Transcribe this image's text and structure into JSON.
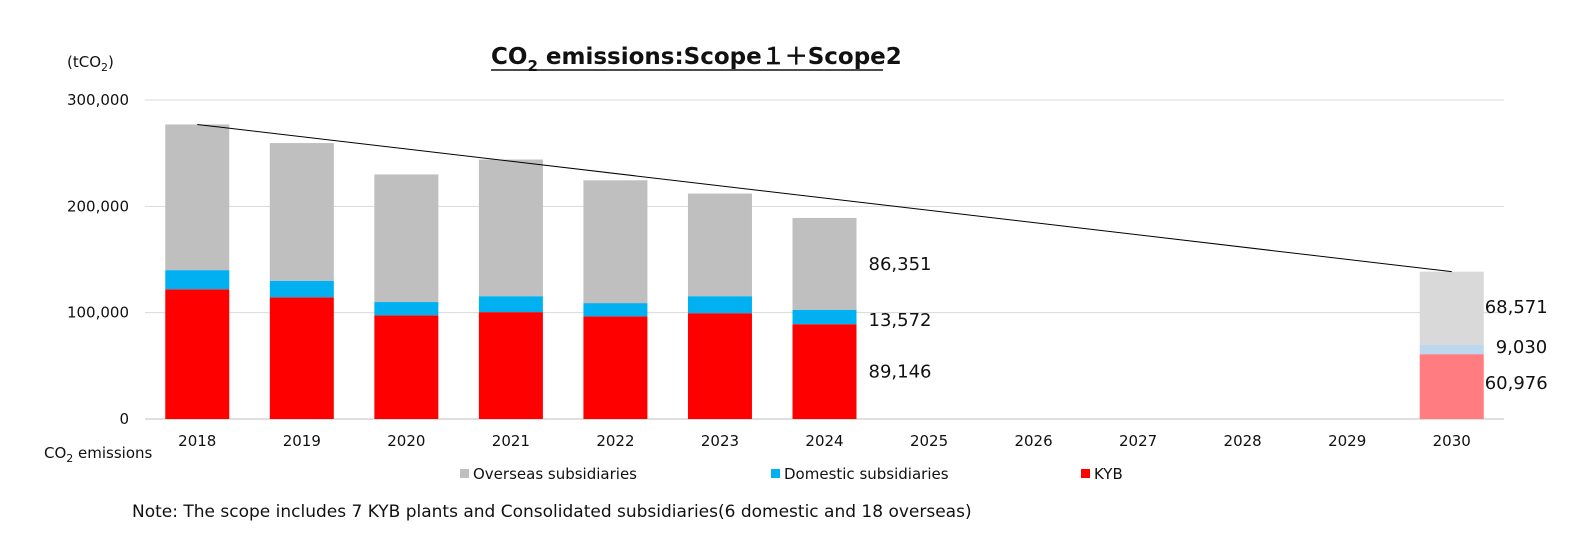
{
  "chart_data": {
    "type": "bar",
    "stacked": true,
    "title": "CO2 emissions:Scope１＋Scope2",
    "title_parts": {
      "main": "CO",
      "sub": "2",
      "rest": " emissions:Scope１＋Scope2"
    },
    "unit_label": {
      "main": "(tCO",
      "sub": "2",
      "close": ")"
    },
    "row_label": {
      "main": "CO",
      "sub": "2",
      "rest": " emissions"
    },
    "categories": [
      "2018",
      "2019",
      "2020",
      "2021",
      "2022",
      "2023",
      "2024",
      "2025",
      "2026",
      "2027",
      "2028",
      "2029",
      "2030"
    ],
    "series": [
      {
        "name": "KYB",
        "color": "#ff0000",
        "target_color": "#ff7c80",
        "values": [
          122000,
          114500,
          97500,
          100500,
          96500,
          99500,
          89146,
          null,
          null,
          null,
          null,
          null,
          60976
        ]
      },
      {
        "name": "Domestic subsidiaries",
        "color": "#00b0f0",
        "target_color": "#bdd7ee",
        "values": [
          18000,
          15500,
          12500,
          15000,
          12500,
          16000,
          13572,
          null,
          null,
          null,
          null,
          null,
          9030
        ]
      },
      {
        "name": "Overseas subsidiaries",
        "color": "#bfbfbf",
        "target_color": "#d9d9d9",
        "values": [
          137000,
          129500,
          120000,
          128500,
          115500,
          96500,
          86351,
          null,
          null,
          null,
          null,
          null,
          68571
        ]
      }
    ],
    "legend_order": [
      "Overseas subsidiaries",
      "Domestic subsidiaries",
      "KYB"
    ],
    "legend_position": "bottom",
    "ylim": [
      0,
      300000
    ],
    "yticks": [
      0,
      100000,
      200000,
      300000
    ],
    "ytick_labels": [
      "0",
      "100,000",
      "200,000",
      "300,000"
    ],
    "grid": true,
    "trendline": {
      "from": {
        "x": "2018",
        "y": 277000
      },
      "to": {
        "x": "2030",
        "y": 138577
      },
      "color": "#000000"
    },
    "data_labels": [
      {
        "category": "2024",
        "series": "Overseas subsidiaries",
        "text": "86,351"
      },
      {
        "category": "2024",
        "series": "Domestic subsidiaries",
        "text": "13,572"
      },
      {
        "category": "2024",
        "series": "KYB",
        "text": "89,146"
      },
      {
        "category": "2030",
        "series": "Overseas subsidiaries",
        "text": "68,571"
      },
      {
        "category": "2030",
        "series": "Domestic subsidiaries",
        "text": "9,030"
      },
      {
        "category": "2030",
        "series": "KYB",
        "text": "60,976"
      }
    ],
    "target_category": "2030"
  },
  "note": "Note: The scope includes 7 KYB plants and Consolidated subsidiaries(6 domestic and 18 overseas)"
}
